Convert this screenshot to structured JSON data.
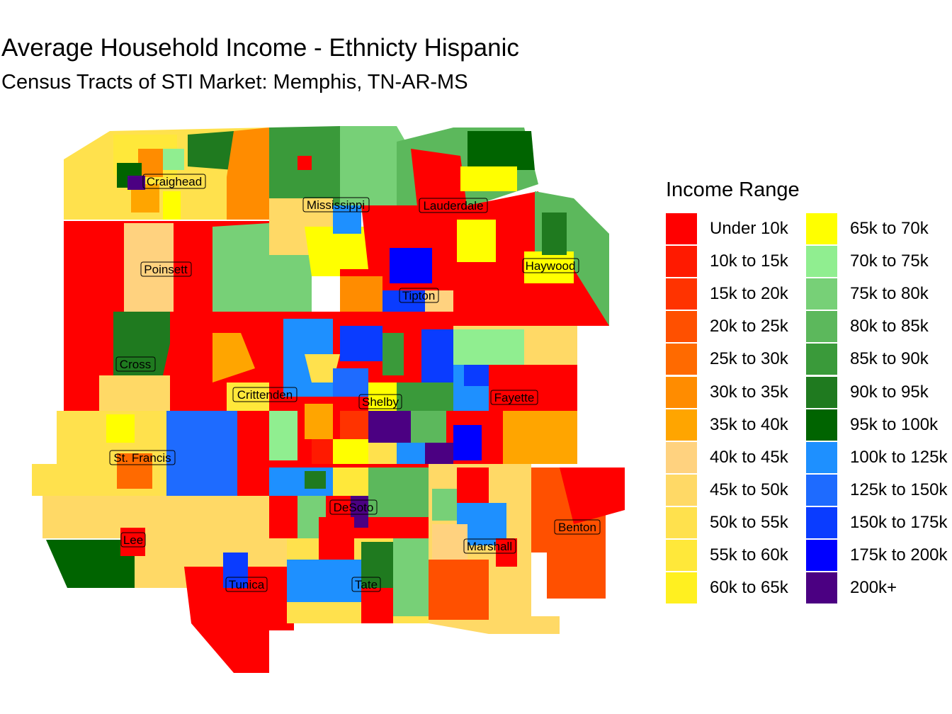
{
  "title": "Average Household Income - Ethnicty Hispanic",
  "subtitle": "Census Tracts of STI Market: Memphis, TN-AR-MS",
  "legend": {
    "title": "Income Range",
    "items": [
      {
        "label": "Under 10k",
        "color": "#FF0000"
      },
      {
        "label": "10k to 15k",
        "color": "#FF1A00"
      },
      {
        "label": "15k to 20k",
        "color": "#FF3300"
      },
      {
        "label": "20k to 25k",
        "color": "#FF5000"
      },
      {
        "label": "25k to 30k",
        "color": "#FF6A00"
      },
      {
        "label": "30k to 35k",
        "color": "#FF8C00"
      },
      {
        "label": "35k to 40k",
        "color": "#FFA500"
      },
      {
        "label": "40k to 45k",
        "color": "#FFD27F"
      },
      {
        "label": "45k to 50k",
        "color": "#FFD966"
      },
      {
        "label": "50k to 55k",
        "color": "#FFE14D"
      },
      {
        "label": "55k to 60k",
        "color": "#FFE83A"
      },
      {
        "label": "60k to 65k",
        "color": "#FFF020"
      },
      {
        "label": "65k to 70k",
        "color": "#FFFF00"
      },
      {
        "label": "70k to 75k",
        "color": "#90EE90"
      },
      {
        "label": "75k to 80k",
        "color": "#77D077"
      },
      {
        "label": "80k to 85k",
        "color": "#5CB85C"
      },
      {
        "label": "85k to 90k",
        "color": "#3A9A3A"
      },
      {
        "label": "90k to 95k",
        "color": "#1F7A1F"
      },
      {
        "label": "95k to 100k",
        "color": "#006400"
      },
      {
        "label": "100k to 125k",
        "color": "#1E90FF"
      },
      {
        "label": "125k to 150k",
        "color": "#1E6BFF"
      },
      {
        "label": "150k to 175k",
        "color": "#0A3CFF"
      },
      {
        "label": "175k to 200k",
        "color": "#0000FF"
      },
      {
        "label": "200k+",
        "color": "#4B0082"
      }
    ]
  },
  "counties": [
    {
      "name": "Craighead"
    },
    {
      "name": "Mississippi"
    },
    {
      "name": "Lauderdale"
    },
    {
      "name": "Poinsett"
    },
    {
      "name": "Haywood"
    },
    {
      "name": "Tipton"
    },
    {
      "name": "Cross"
    },
    {
      "name": "Crittenden"
    },
    {
      "name": "Shelby"
    },
    {
      "name": "Fayette"
    },
    {
      "name": "St. Francis"
    },
    {
      "name": "DeSoto"
    },
    {
      "name": "Benton"
    },
    {
      "name": "Lee"
    },
    {
      "name": "Marshall"
    },
    {
      "name": "Tunica"
    },
    {
      "name": "Tate"
    }
  ]
}
